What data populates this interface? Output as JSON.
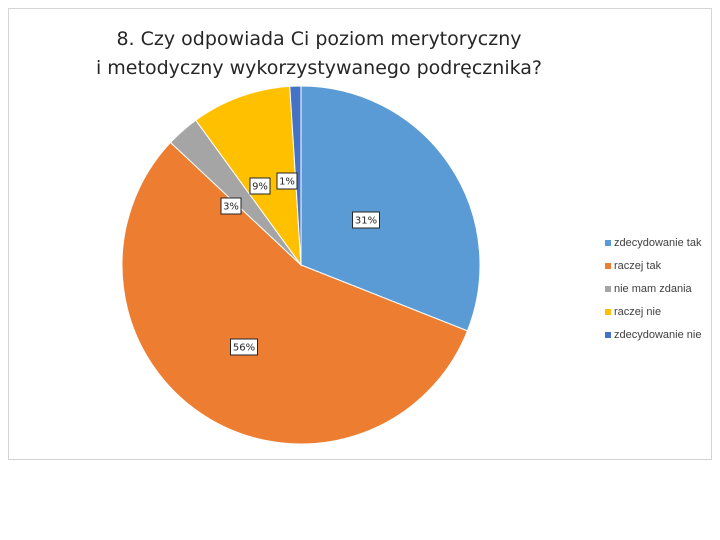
{
  "chart_data": {
    "type": "pie",
    "title_line1": "8. Czy odpowiada Ci poziom merytoryczny",
    "title_line2": "i metodyczny wykorzystywanego podręcznika?",
    "legend_position": "right",
    "series": [
      {
        "name": "zdecydowanie tak",
        "value": 31,
        "label": "31%",
        "color": "#5b9bd5"
      },
      {
        "name": "raczej tak",
        "value": 56,
        "label": "56%",
        "color": "#ed7d31"
      },
      {
        "name": "nie mam zdania",
        "value": 3,
        "label": "3%",
        "color": "#a5a5a5"
      },
      {
        "name": "raczej nie",
        "value": 9,
        "label": "9%",
        "color": "#ffc000"
      },
      {
        "name": "zdecydowanie nie",
        "value": 1,
        "label": "1%",
        "color": "#4472c4"
      }
    ]
  }
}
